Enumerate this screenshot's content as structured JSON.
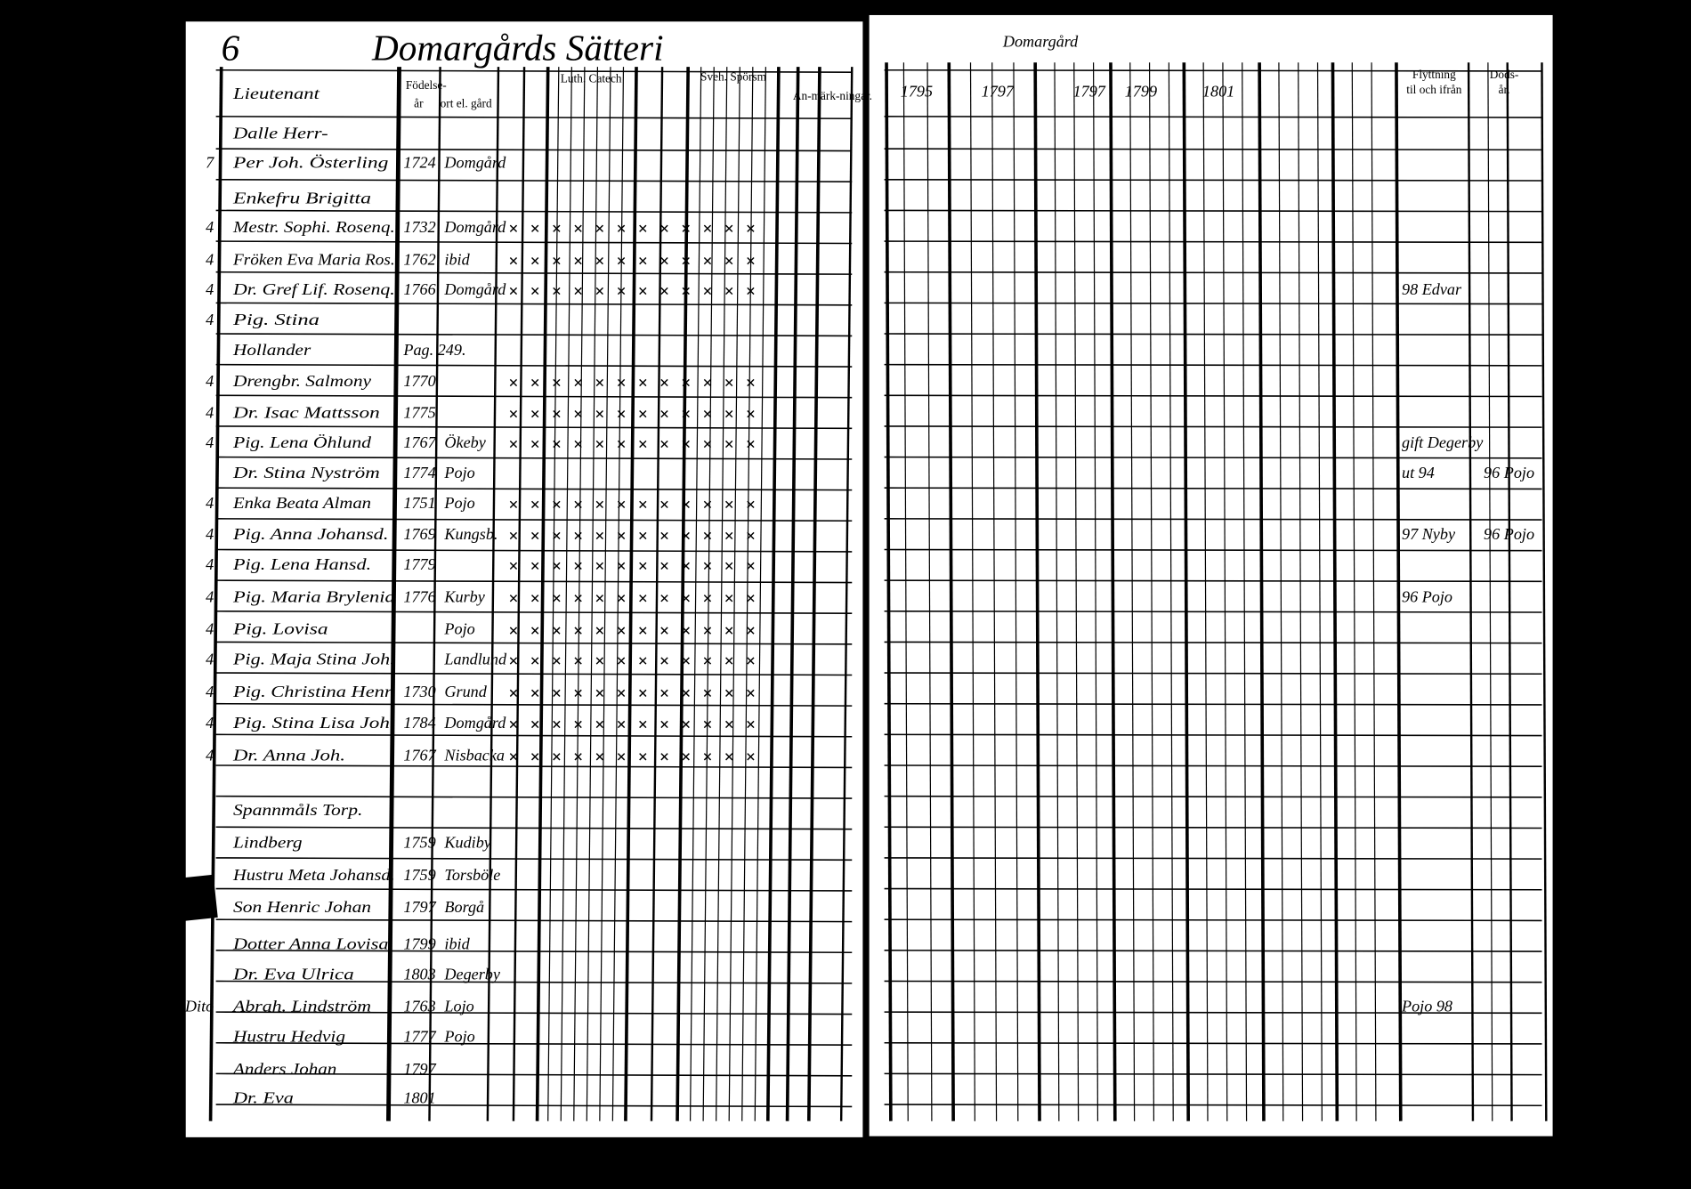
{
  "header": {
    "page_number": "6",
    "title": "Domargårds Sätteri",
    "right_title": "Domargård"
  },
  "left_columns": [
    "Födelse-",
    "år",
    "ort el. gård",
    "Luth. Catech",
    "Sveh. Spörsm",
    "An-märk-ningar."
  ],
  "right_columns": [
    "1795",
    "1797",
    "1797",
    "1799",
    "1801",
    "Flyttning",
    "til och ifrån",
    "Döds-",
    "år."
  ],
  "rows": [
    {
      "name": "Lieutenant"
    },
    {
      "name": "Dalle Herr-"
    },
    {
      "mark": "7",
      "name": "Per Joh. Österling",
      "born": "1724",
      "place": "Domgård"
    },
    {
      "name": "Enkefru Brigitta"
    },
    {
      "mark": "4",
      "name": "Mestr. Sophi. Rosenq.",
      "born": "1732",
      "place": "Domgård"
    },
    {
      "mark": "4",
      "name": "Fröken Eva Maria Ros.",
      "born": "1762",
      "place": "ibid"
    },
    {
      "mark": "4",
      "name": "Dr. Gref Lif. Rosenq.",
      "born": "1766",
      "place": "Domgård"
    },
    {
      "mark": "4",
      "name": "Pig. Stina"
    },
    {
      "name": "Hollander",
      "born": "Pag. 249."
    },
    {
      "mark": "4",
      "name": "Drengbr. Salmony",
      "born": "1770"
    },
    {
      "mark": "4",
      "name": "Dr. Isac Mattsson",
      "born": "1775"
    },
    {
      "mark": "4",
      "name": "Pig. Lena Öhlund",
      "born": "1767",
      "place": "Ökeby"
    },
    {
      "name": "Dr. Stina Nyström",
      "born": "1774",
      "place": "Pojo"
    },
    {
      "mark": "4",
      "name": "Enka Beata Alman",
      "born": "1751",
      "place": "Pojo"
    },
    {
      "mark": "4",
      "name": "Pig. Anna Johansd.",
      "born": "1769",
      "place": "Kungsb."
    },
    {
      "mark": "4",
      "name": "Pig. Lena Hansd.",
      "born": "1779"
    },
    {
      "mark": "4",
      "name": "Pig. Maria Brylenia",
      "born": "1776",
      "place": "Kurby"
    },
    {
      "mark": "4",
      "name": "Pig. Lovisa",
      "place": "Pojo"
    },
    {
      "mark": "4",
      "name": "Pig. Maja Stina Joh.",
      "place": "Landlund"
    },
    {
      "mark": "4",
      "name": "Pig. Christina Henr.",
      "born": "1730",
      "place": "Grund"
    },
    {
      "mark": "4",
      "name": "Pig. Stina Lisa Joh.",
      "born": "1784",
      "place": "Domgård"
    },
    {
      "mark": "4",
      "name": "Dr. Anna Joh.",
      "born": "1767",
      "place": "Nisbacka"
    },
    {
      "name": "Spannmåls Torp."
    },
    {
      "name": "Lindberg",
      "born": "1759",
      "place": "Kudiby"
    },
    {
      "name": "Hustru Meta Johansd.",
      "born": "1759",
      "place": "Torsböle"
    },
    {
      "name": "Son Henric Johan",
      "born": "1797",
      "place": "Borgå"
    },
    {
      "name": "Dotter Anna Lovisa",
      "born": "1799",
      "place": "ibid"
    },
    {
      "name": "Dr. Eva Ulrica",
      "born": "1803",
      "place": "Degerby"
    },
    {
      "mark": "Dito",
      "name": "Abrah. Lindström",
      "born": "1763",
      "place": "Lojo"
    },
    {
      "name": "Hustru Hedvig",
      "born": "1777",
      "place": "Pojo"
    },
    {
      "name": "Anders Johan",
      "born": "1797"
    },
    {
      "name": "Dr. Eva",
      "born": "1801"
    }
  ],
  "notes": [
    {
      "row": 6,
      "text": "98 Edvar"
    },
    {
      "row": 11,
      "text": "gift Degerby"
    },
    {
      "row": 12,
      "text": "ut 94"
    },
    {
      "row": 12,
      "text": "96 Pojo"
    },
    {
      "row": 14,
      "text": "97 Nyby"
    },
    {
      "row": 14,
      "text": "96 Pojo"
    },
    {
      "row": 16,
      "text": "96 Pojo"
    },
    {
      "row": 28,
      "text": "Pojo 98"
    }
  ]
}
